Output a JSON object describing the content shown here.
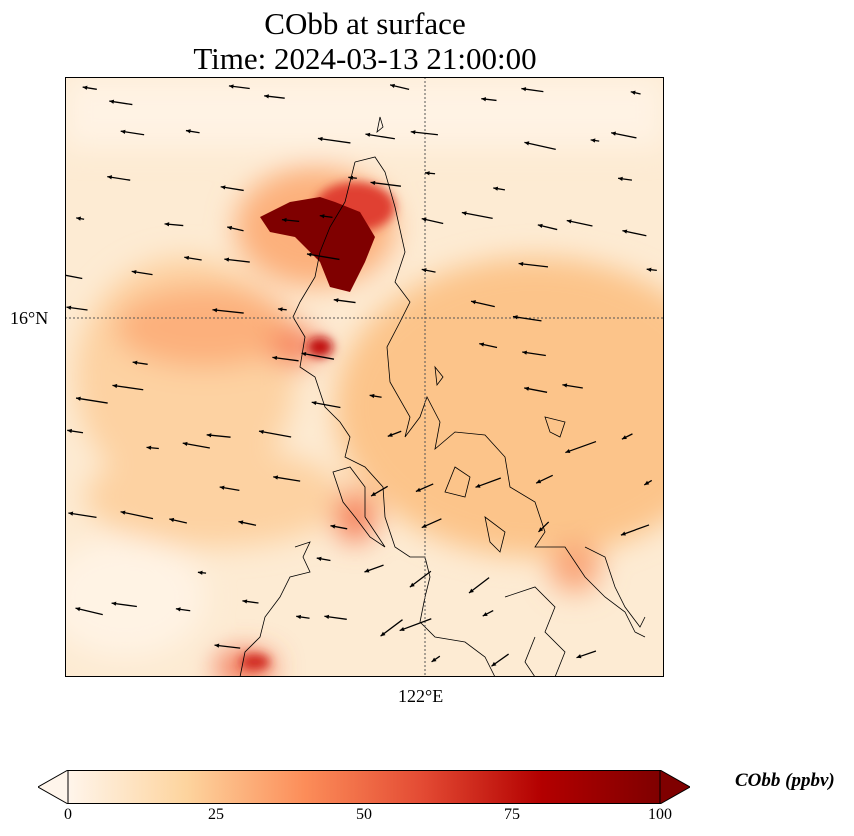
{
  "title": {
    "line1": "CObb at surface",
    "line2": "Time: 2024-03-13 21:00:00"
  },
  "axes": {
    "lat_label": "16°N",
    "lon_label": "122°E"
  },
  "colorbar": {
    "label": "CObb (ppbv)",
    "ticks": [
      "0",
      "25",
      "50",
      "75",
      "100"
    ],
    "range": [
      0,
      100
    ],
    "extend": "both",
    "colormap": [
      "#fff5eb",
      "#fdd49e",
      "#fc8d59",
      "#e34a33",
      "#b30000",
      "#7f0000"
    ]
  }
}
